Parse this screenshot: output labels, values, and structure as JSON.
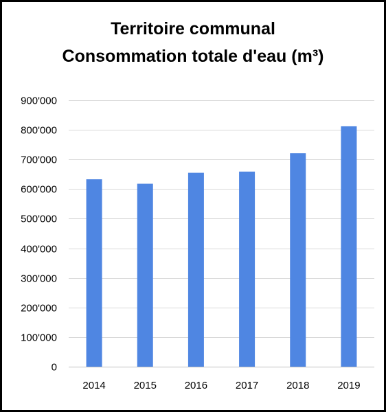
{
  "chart_data": {
    "type": "bar",
    "title": [
      "Territoire communal",
      "Consommation totale d'eau (m³)"
    ],
    "categories": [
      "2014",
      "2015",
      "2016",
      "2017",
      "2018",
      "2019"
    ],
    "values": [
      633000,
      618000,
      655000,
      659000,
      721000,
      812000
    ],
    "ylim": [
      0,
      900000
    ],
    "yticks": [
      0,
      100000,
      200000,
      300000,
      400000,
      500000,
      600000,
      700000,
      800000,
      900000
    ],
    "ytick_labels": [
      "0",
      "100'000",
      "200'000",
      "300'000",
      "400'000",
      "500'000",
      "600'000",
      "700'000",
      "800'000",
      "900'000"
    ],
    "grid": true,
    "legend": "none",
    "colors": {
      "bar": "#4f86e2",
      "grid": "#d9d9d9",
      "axis": "#bfbfbf",
      "border": "#000000"
    }
  }
}
